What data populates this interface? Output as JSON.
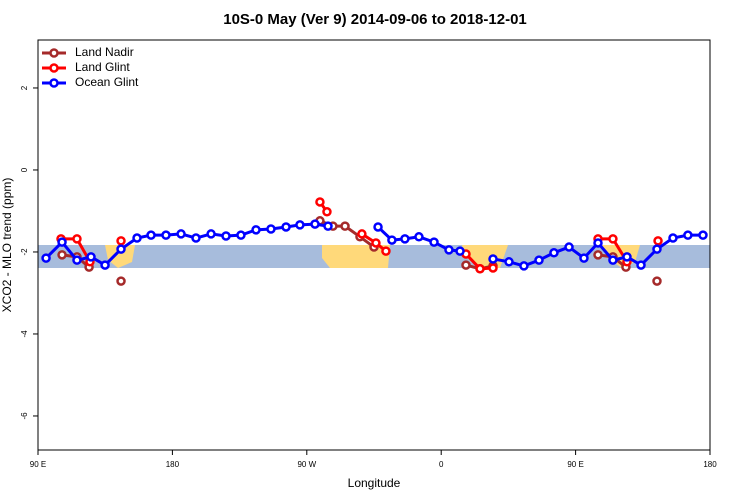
{
  "chart_data": {
    "type": "line",
    "title": "10S-0 May (Ver 9)   2014-09-06 to 2018-12-01",
    "x_label": "Longitude",
    "y_label": "XCO2 - MLO trend (ppm)",
    "xlim": [
      90,
      540
    ],
    "xticks": [
      {
        "value": 90,
        "label": "90 E"
      },
      180,
      {
        "value": 270,
        "label": "90 W"
      },
      {
        "value": 360,
        "label": "0"
      },
      {
        "value": 450,
        "label": "90 E"
      },
      {
        "value": 540,
        "label": "180"
      }
    ],
    "ylim": [
      -6.83,
      3.17
    ],
    "yticks": [
      2,
      0,
      -2,
      -4,
      -6
    ],
    "legend": "top-left",
    "series": [
      {
        "name": "Land Nadir",
        "color": "#a52a2a",
        "x": [
          106.1,
          116.1,
          124.2,
          null,
          145.6,
          null,
          278.8,
          287.5,
          295.6,
          305.6,
          315.0,
          null,
          376.6,
          386.0,
          394.7,
          null,
          465.0,
          475.0,
          483.7,
          null,
          504.5
        ],
        "values": [
          -2.07,
          -2.12,
          -2.37,
          null,
          -2.71,
          null,
          -1.24,
          -1.37,
          -1.37,
          -1.63,
          -1.88,
          null,
          -2.32,
          -2.41,
          -2.34,
          null,
          -2.07,
          -2.12,
          -2.37,
          null,
          -2.71
        ]
      },
      {
        "name": "Land Glint",
        "color": "#ff0000",
        "x": [
          105.4,
          116.1,
          124.8,
          null,
          145.6,
          null,
          278.8,
          283.5,
          null,
          306.9,
          316.3,
          323.0,
          null,
          376.6,
          386.0,
          394.7,
          null,
          465.0,
          475.0,
          484.4,
          null,
          505.2
        ],
        "values": [
          -1.68,
          -1.68,
          -2.24,
          null,
          -1.73,
          null,
          -0.78,
          -1.02,
          null,
          -1.56,
          -1.78,
          -1.98,
          null,
          -2.05,
          -2.41,
          -2.39,
          null,
          -1.68,
          -1.68,
          -2.24,
          null,
          -1.73
        ]
      },
      {
        "name": "Ocean Glint",
        "color": "#0000ff",
        "x": [
          95.4,
          106.1,
          116.1,
          125.5,
          134.9,
          145.6,
          156.3,
          165.7,
          175.7,
          185.8,
          195.8,
          205.9,
          215.9,
          225.9,
          236.0,
          246.0,
          256.1,
          265.4,
          275.5,
          284.2,
          null,
          317.7,
          327.0,
          335.7,
          345.1,
          355.2,
          365.2,
          372.6,
          null,
          394.7,
          405.4,
          415.4,
          425.5,
          435.5,
          445.6,
          455.6,
          465.0,
          475.0,
          484.4,
          493.8,
          504.5,
          515.2,
          525.2,
          535.3
        ],
        "values": [
          -2.15,
          -1.76,
          -2.2,
          -2.12,
          -2.32,
          -1.93,
          -1.66,
          -1.59,
          -1.59,
          -1.56,
          -1.66,
          -1.56,
          -1.61,
          -1.59,
          -1.46,
          -1.44,
          -1.39,
          -1.34,
          -1.32,
          -1.37,
          null,
          -1.39,
          -1.71,
          -1.68,
          -1.63,
          -1.76,
          -1.95,
          -1.98,
          null,
          -2.17,
          -2.24,
          -2.34,
          -2.2,
          -2.02,
          -1.88,
          -2.15,
          -1.78,
          -2.2,
          -2.12,
          -2.32,
          -1.93,
          -1.66,
          -1.59,
          -1.59
        ]
      }
    ]
  }
}
